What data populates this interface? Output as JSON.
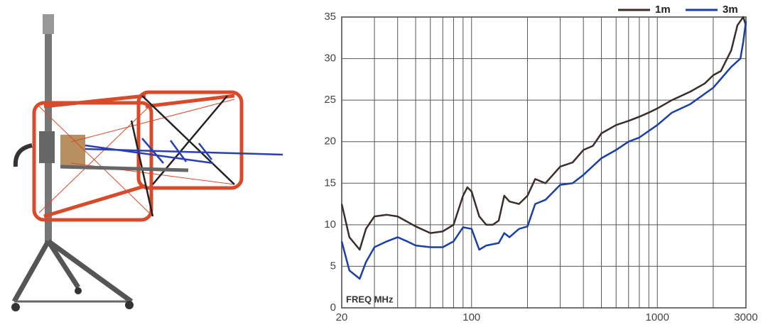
{
  "chart_data": {
    "type": "line",
    "annotation": "FREQ MHz",
    "xscale": "log",
    "xlim": [
      20,
      3000
    ],
    "xticks": [
      20,
      100,
      1000,
      3000
    ],
    "minor_xticks": [
      30,
      40,
      50,
      60,
      70,
      80,
      90,
      200,
      300,
      400,
      500,
      600,
      700,
      800,
      900,
      2000
    ],
    "ylim": [
      0,
      35
    ],
    "yticks": [
      0,
      5,
      10,
      15,
      20,
      25,
      30,
      35
    ],
    "grid": true,
    "legend": "top-right",
    "series": [
      {
        "name": "1m",
        "color": "#3a2e2a",
        "x": [
          20,
          22,
          25,
          27,
          30,
          35,
          40,
          50,
          60,
          70,
          80,
          90,
          95,
          100,
          110,
          120,
          130,
          140,
          150,
          160,
          180,
          200,
          220,
          250,
          300,
          350,
          400,
          450,
          500,
          600,
          700,
          800,
          900,
          1000,
          1200,
          1500,
          1800,
          2000,
          2200,
          2500,
          2700,
          2900,
          3000
        ],
        "values": [
          12.5,
          8.5,
          7,
          9.5,
          11,
          11.2,
          11,
          9.8,
          9,
          9.2,
          10,
          13.5,
          14.5,
          14,
          11,
          10,
          10,
          10.5,
          13.5,
          12.8,
          12.5,
          13.5,
          15.5,
          15,
          17,
          17.5,
          19,
          19.5,
          21,
          22,
          22.5,
          23,
          23.5,
          24,
          25,
          26,
          27,
          28,
          28.5,
          31,
          34,
          35,
          34
        ]
      },
      {
        "name": "3m",
        "color": "#1a3fa8",
        "x": [
          20,
          22,
          25,
          27,
          30,
          35,
          40,
          45,
          50,
          60,
          70,
          80,
          90,
          100,
          110,
          120,
          140,
          150,
          160,
          180,
          200,
          220,
          250,
          300,
          350,
          400,
          500,
          600,
          700,
          800,
          1000,
          1200,
          1500,
          2000,
          2500,
          2800,
          2900,
          3000
        ],
        "values": [
          8,
          4.5,
          3.5,
          5.5,
          7.3,
          8,
          8.5,
          8,
          7.5,
          7.3,
          7.3,
          8,
          9.7,
          9.5,
          7,
          7.5,
          7.8,
          9,
          8.5,
          9.5,
          9.8,
          12.5,
          13,
          14.8,
          15,
          16,
          18,
          19,
          20,
          20.5,
          22,
          23.5,
          24.5,
          26.5,
          29,
          30,
          32,
          34.5
        ]
      }
    ]
  }
}
